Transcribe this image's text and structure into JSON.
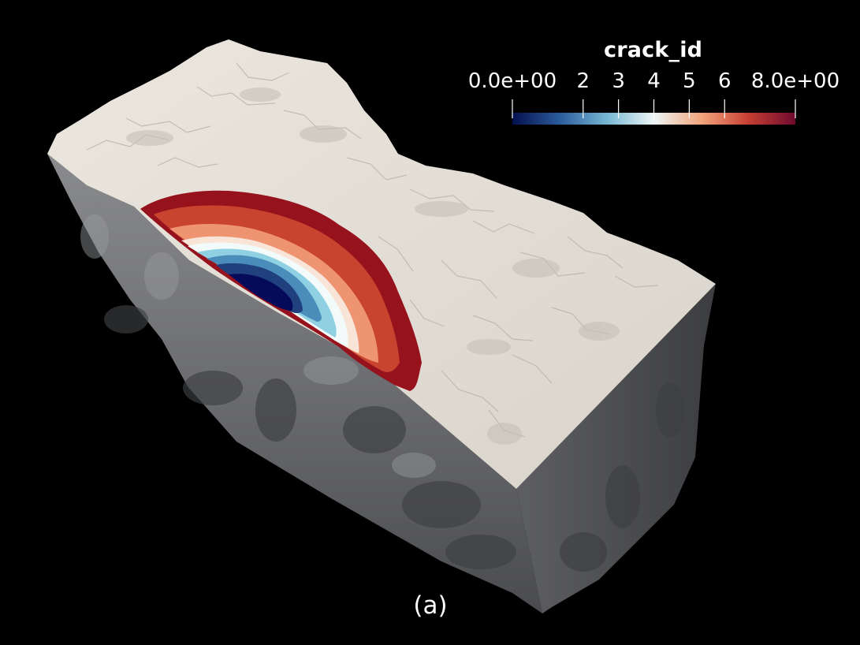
{
  "legend": {
    "title": "crack_id",
    "ticks": [
      {
        "label": "0.0e+00",
        "value": 0
      },
      {
        "label": "2",
        "value": 2
      },
      {
        "label": "3",
        "value": 3
      },
      {
        "label": "4",
        "value": 4
      },
      {
        "label": "5",
        "value": 5
      },
      {
        "label": "6",
        "value": 6
      },
      {
        "label": "8.0e+00",
        "value": 8
      }
    ],
    "range": [
      0,
      8
    ],
    "colormap": [
      "#05104e",
      "#2b5c9b",
      "#76b6d3",
      "#eef6f6",
      "#f2a57c",
      "#c73f33",
      "#6e0a2e"
    ]
  },
  "panel_label": "(a)",
  "colors": {
    "background": "#000000",
    "top_surface": "#e3ded6",
    "side_face": "#6a6b6e",
    "crack_bands": [
      "#96121c",
      "#c9442f",
      "#ee9470",
      "#f9e4d8",
      "#f2fafa",
      "#8fd0e2",
      "#4a8cba",
      "#20407e",
      "#050a5a"
    ]
  }
}
